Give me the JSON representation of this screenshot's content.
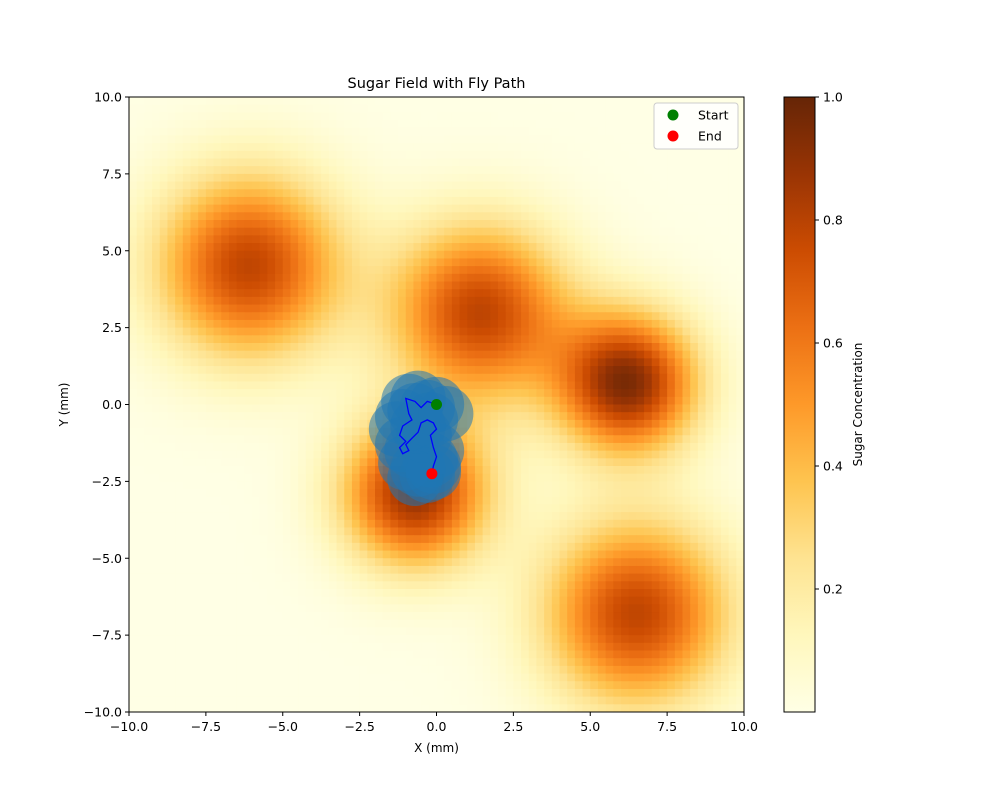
{
  "chart_data": {
    "type": "heatmap",
    "title": "Sugar Field with Fly Path",
    "xlabel": "X (mm)",
    "ylabel": "Y (mm)",
    "xlim": [
      -10,
      10
    ],
    "ylim": [
      -10,
      10
    ],
    "x_ticks": [
      -10,
      -7.5,
      -5,
      -2.5,
      0,
      2.5,
      5,
      7.5,
      10
    ],
    "y_ticks": [
      -10,
      -7.5,
      -5,
      -2.5,
      0,
      2.5,
      5,
      7.5,
      10
    ],
    "x_tick_labels": [
      "−10.0",
      "−7.5",
      "−5.0",
      "−2.5",
      "0.0",
      "2.5",
      "5.0",
      "7.5",
      "10.0"
    ],
    "y_tick_labels": [
      "−10.0",
      "−7.5",
      "−5.0",
      "−2.5",
      "0.0",
      "2.5",
      "5.0",
      "7.5",
      "10.0"
    ],
    "grid": false,
    "grid_resolution": 80,
    "colormap": [
      "#ffffe5",
      "#fff7bc",
      "#fee391",
      "#fec44f",
      "#fe9929",
      "#ec7014",
      "#cc4c02",
      "#993404",
      "#662506"
    ],
    "sugar_sources": [
      {
        "x": -6.1,
        "y": 4.5,
        "peak": 0.78,
        "sigma": 2.1
      },
      {
        "x": 1.4,
        "y": 3.0,
        "peak": 0.78,
        "sigma": 2.0
      },
      {
        "x": 6.2,
        "y": 0.7,
        "peak": 0.93,
        "sigma": 1.6
      },
      {
        "x": -0.7,
        "y": -2.9,
        "peak": 0.88,
        "sigma": 1.65
      },
      {
        "x": 6.5,
        "y": -6.8,
        "peak": 0.78,
        "sigma": 2.1
      }
    ],
    "colorbar": {
      "label": "Sugar Concentration",
      "range": [
        0,
        1
      ],
      "ticks": [
        0.2,
        0.4,
        0.6,
        0.8,
        1.0
      ],
      "tick_labels": [
        "0.2",
        "0.4",
        "0.6",
        "0.8",
        "1.0"
      ]
    },
    "explored_region": {
      "color": "#1f77b4",
      "radius": 0.9,
      "centers": [
        [
          0.0,
          0.0
        ],
        [
          -0.3,
          -0.1
        ],
        [
          -0.7,
          -0.2
        ],
        [
          -0.9,
          0.1
        ],
        [
          -0.6,
          0.2
        ],
        [
          -1.1,
          -0.4
        ],
        [
          -1.3,
          -0.8
        ],
        [
          -1.1,
          -1.3
        ],
        [
          -0.8,
          -1.5
        ],
        [
          -1.0,
          -1.9
        ],
        [
          -0.6,
          -2.1
        ],
        [
          -0.2,
          -1.8
        ],
        [
          0.0,
          -1.5
        ],
        [
          -0.1,
          -2.0
        ],
        [
          -0.3,
          -2.3
        ],
        [
          -0.1,
          -2.2
        ],
        [
          -0.4,
          -1.0
        ],
        [
          -0.2,
          -0.5
        ],
        [
          0.3,
          -0.3
        ],
        [
          -0.6,
          -0.7
        ],
        [
          -0.7,
          -2.4
        ]
      ]
    },
    "fly_path": {
      "color": "#0000ff",
      "x": [
        0.0,
        -0.3,
        -0.5,
        -0.7,
        -1.0,
        -0.9,
        -0.8,
        -1.1,
        -1.2,
        -1.0,
        -1.2,
        -1.1,
        -0.9,
        -1.0,
        -0.8,
        -0.6,
        -0.5,
        -0.3,
        -0.1,
        0.0,
        -0.2,
        -0.1,
        0.0,
        -0.1,
        -0.15
      ],
      "y": [
        0.0,
        0.1,
        -0.1,
        0.1,
        0.2,
        -0.3,
        -0.5,
        -0.7,
        -1.0,
        -1.2,
        -1.4,
        -1.6,
        -1.5,
        -1.3,
        -1.1,
        -0.9,
        -0.6,
        -0.5,
        -0.6,
        -0.8,
        -1.0,
        -1.4,
        -1.7,
        -2.0,
        -2.25
      ]
    },
    "start": {
      "x": 0.0,
      "y": 0.0,
      "color": "#008000"
    },
    "end": {
      "x": -0.15,
      "y": -2.25,
      "color": "#ff0000"
    },
    "legend": {
      "placement": "upper right",
      "entries": [
        {
          "label": "Start",
          "color": "#008000"
        },
        {
          "label": "End",
          "color": "#ff0000"
        }
      ]
    }
  }
}
